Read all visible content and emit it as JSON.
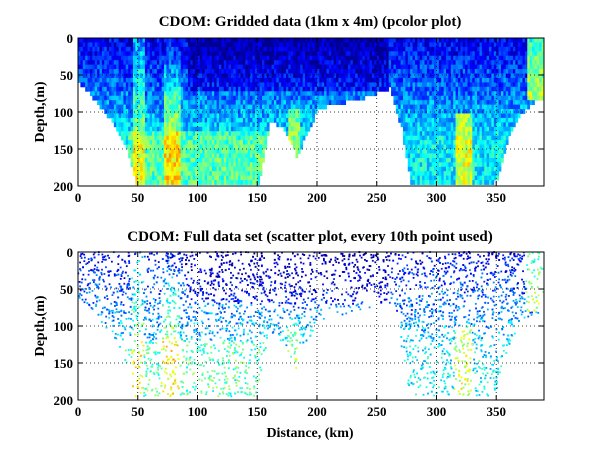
{
  "chart_data": [
    {
      "type": "heatmap",
      "title": "CDOM: Gridded data (1km x 4m) (pcolor plot)",
      "xlabel": "",
      "ylabel": "Depth,(m)",
      "xlim": [
        0,
        390
      ],
      "ylim": [
        200,
        0
      ],
      "xticks": [
        "0",
        "50",
        "100",
        "150",
        "200",
        "250",
        "300",
        "350"
      ],
      "yticks": [
        "0",
        "50",
        "100",
        "150",
        "200"
      ],
      "grid": true,
      "colormap": [
        "#00008f",
        "#0000ff",
        "#0080ff",
        "#00ffff",
        "#80ff80",
        "#ffff00",
        "#ff8000",
        "#ff0000"
      ],
      "bottom_depth_profile": {
        "distance_km": [
          0,
          10,
          20,
          30,
          40,
          48,
          55,
          65,
          75,
          85,
          95,
          110,
          125,
          140,
          150,
          160,
          170,
          178,
          182,
          190,
          200,
          210,
          220,
          235,
          250,
          260,
          270,
          278,
          285,
          300,
          320,
          340,
          350,
          360,
          370,
          380,
          390
        ],
        "depth_m": [
          60,
          75,
          95,
          115,
          150,
          195,
          198,
          198,
          198,
          198,
          198,
          198,
          198,
          198,
          198,
          110,
          120,
          140,
          160,
          130,
          95,
          88,
          85,
          80,
          72,
          65,
          120,
          198,
          198,
          198,
          198,
          198,
          190,
          130,
          100,
          85,
          80
        ]
      }
    },
    {
      "type": "scatter",
      "title": "CDOM: Full data set (scatter plot, every 10th point used)",
      "xlabel": "Distance, (km)",
      "ylabel": "Depth,(m)",
      "xlim": [
        0,
        390
      ],
      "ylim": [
        200,
        0
      ],
      "xticks": [
        "0",
        "50",
        "100",
        "150",
        "200",
        "250",
        "300",
        "350"
      ],
      "yticks": [
        "0",
        "50",
        "100",
        "150",
        "200"
      ],
      "grid": true,
      "colormap": [
        "#00008f",
        "#0000ff",
        "#0080ff",
        "#00ffff",
        "#80ff80",
        "#ffff00",
        "#ff8000",
        "#ff0000"
      ]
    }
  ]
}
